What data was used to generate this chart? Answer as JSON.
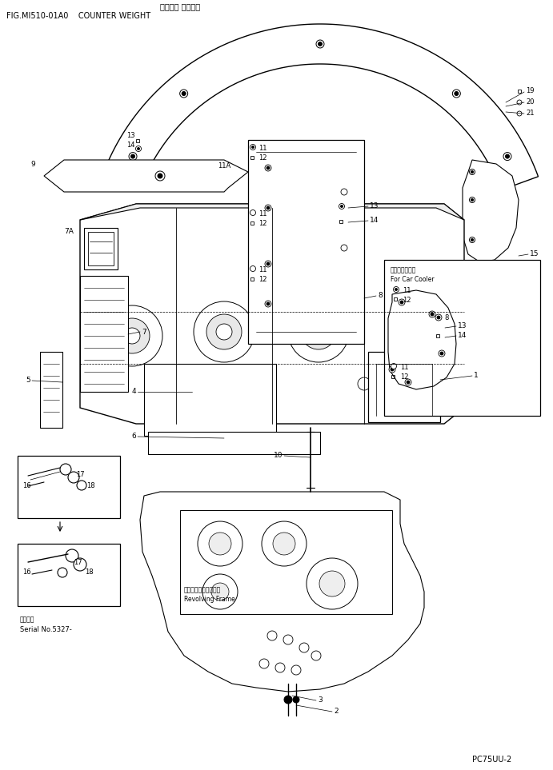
{
  "title_jp": "カウンタ ウェイト",
  "title_en": "FIG.MI510-01A0    COUNTER WEIGHT",
  "model": "PC75UU-2",
  "bg_color": "#ffffff",
  "fig_width": 6.91,
  "fig_height": 9.63,
  "cooler_jp": "カークーラー用",
  "cooler_en": "For Car Cooler",
  "revolving_jp": "レボルビングフレーム",
  "revolving_en": "Revolving Frame",
  "serial_jp": "適用号機",
  "serial_en": "Serial No.5327-"
}
